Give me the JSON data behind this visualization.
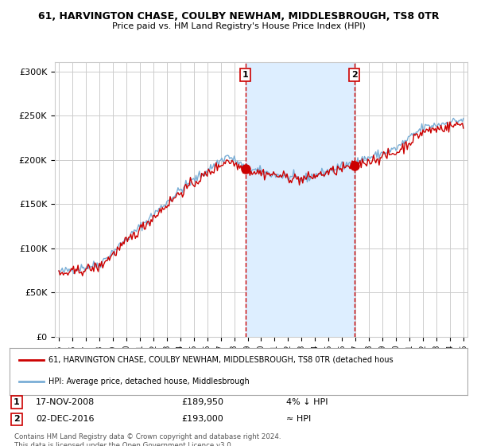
{
  "title_line1": "61, HARVINGTON CHASE, COULBY NEWHAM, MIDDLESBROUGH, TS8 0TR",
  "title_line2": "Price paid vs. HM Land Registry's House Price Index (HPI)",
  "ylim": [
    0,
    310000
  ],
  "yticks": [
    0,
    50000,
    100000,
    150000,
    200000,
    250000,
    300000
  ],
  "ytick_labels": [
    "£0",
    "£50K",
    "£100K",
    "£150K",
    "£200K",
    "£250K",
    "£300K"
  ],
  "sale1_date": "17-NOV-2008",
  "sale1_price": 189950,
  "sale1_label": "1",
  "sale1_note": "4% ↓ HPI",
  "sale2_date": "02-DEC-2016",
  "sale2_price": 193000,
  "sale2_label": "2",
  "sale2_note": "≈ HPI",
  "line1_color": "#cc0000",
  "line2_color": "#7aaed6",
  "vline_color": "#cc0000",
  "shade_color": "#ddeeff",
  "background_color": "#ffffff",
  "grid_color": "#cccccc",
  "legend_line1": "61, HARVINGTON CHASE, COULBY NEWHAM, MIDDLESBROUGH, TS8 0TR (detached hous",
  "legend_line2": "HPI: Average price, detached house, Middlesbrough",
  "footer": "Contains HM Land Registry data © Crown copyright and database right 2024.\nThis data is licensed under the Open Government Licence v3.0."
}
